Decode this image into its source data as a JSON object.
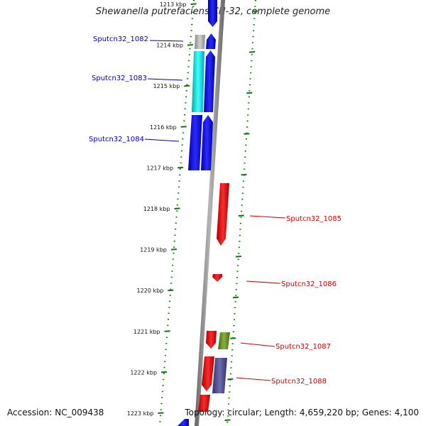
{
  "title": "Shewanella putrefaciens CN-32, complete genome",
  "footer": {
    "accession": "Accession: NC_009438",
    "summary": "Topology: circular; Length: 4,659,220 bp; Genes: 4,100"
  },
  "ticks": [
    "1213 kbp",
    "1214 kbp",
    "1215 kbp",
    "1216 kbp",
    "1217 kbp",
    "1218 kbp",
    "1219 kbp",
    "1220 kbp",
    "1221 kbp",
    "1222 kbp",
    "1223 kbp"
  ],
  "gene_labels": [
    {
      "name": "Sputcn32_1082",
      "strand": "forward"
    },
    {
      "name": "Sputcn32_1083",
      "strand": "forward"
    },
    {
      "name": "Sputcn32_1084",
      "strand": "forward"
    },
    {
      "name": "Sputcn32_1085",
      "strand": "reverse"
    },
    {
      "name": "Sputcn32_1086",
      "strand": "reverse"
    },
    {
      "name": "Sputcn32_1087",
      "strand": "reverse"
    },
    {
      "name": "Sputcn32_1088",
      "strand": "reverse"
    }
  ],
  "colors": {
    "forward_cds": "#0000ee",
    "reverse_cds": "#ee0000",
    "forward_label": "#0000aa",
    "reverse_label": "#cc0000",
    "gray_feature": "#b0b0b0",
    "cyan_feature": "#00e5e5",
    "olive_feature": "#6b8e23",
    "slate_feature": "#4b4a8f",
    "backbone": "#888888",
    "ruler": "#0a7a0a"
  }
}
